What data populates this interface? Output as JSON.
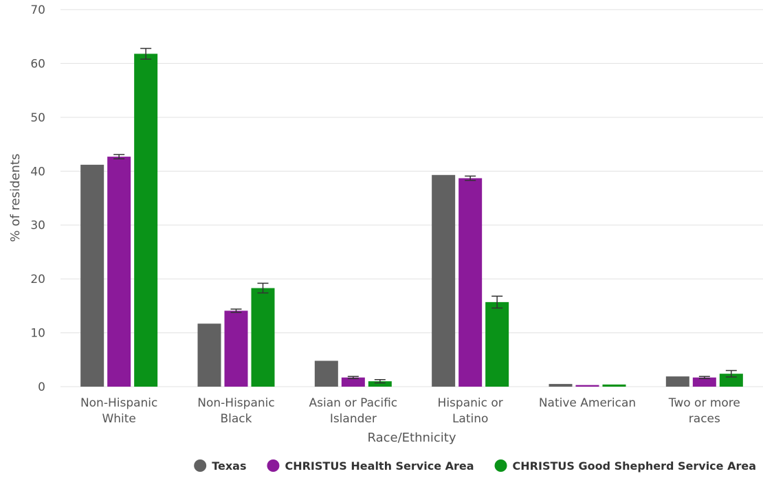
{
  "chart_data": {
    "type": "bar",
    "xlabel": "Race/Ethnicity",
    "ylabel": "% of residents",
    "ylim": [
      0,
      70
    ],
    "yticks": [
      0,
      10,
      20,
      30,
      40,
      50,
      60,
      70
    ],
    "grid": true,
    "legend_position": "bottom-right",
    "categories": [
      [
        "Non-Hispanic",
        "White"
      ],
      [
        "Non-Hispanic",
        "Black"
      ],
      [
        "Asian or Pacific",
        "Islander"
      ],
      [
        "Hispanic or",
        "Latino"
      ],
      [
        "Native American"
      ],
      [
        "Two or more",
        "races"
      ]
    ],
    "series": [
      {
        "name": "Texas",
        "color": "#616161",
        "values": [
          41.2,
          11.7,
          4.8,
          39.3,
          0.5,
          1.9
        ],
        "error": [
          null,
          null,
          null,
          null,
          null,
          null
        ]
      },
      {
        "name": "CHRISTUS Health Service Area",
        "color": "#8b1a9a",
        "values": [
          42.7,
          14.1,
          1.7,
          38.7,
          0.3,
          1.7
        ],
        "error": [
          0.4,
          0.3,
          0.2,
          0.4,
          null,
          0.2
        ]
      },
      {
        "name": "CHRISTUS Good Shepherd Service Area",
        "color": "#0a9318",
        "values": [
          61.8,
          18.3,
          1.0,
          15.7,
          0.4,
          2.4
        ],
        "error": [
          1.0,
          0.9,
          0.3,
          1.1,
          null,
          0.6
        ]
      }
    ]
  }
}
